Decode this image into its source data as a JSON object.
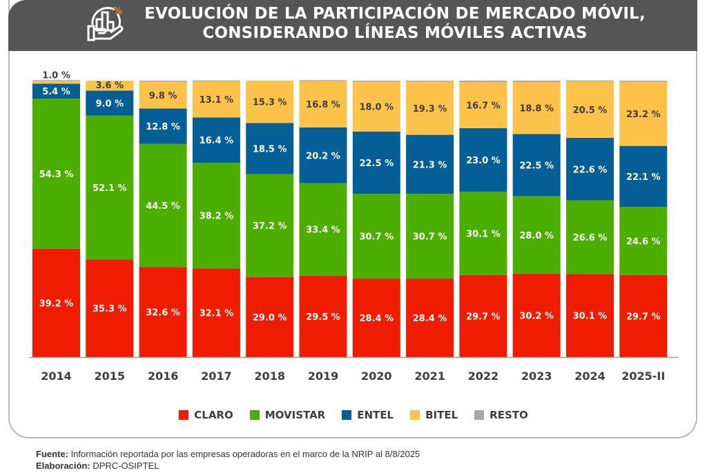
{
  "header": {
    "title_line1": "EVOLUCIÓN DE LA PARTICIPACIÓN DE MERCADO MÓVIL,",
    "title_line2": "CONSIDERANDO LÍNEAS MÓVILES ACTIVAS",
    "icon": "hand-holding-bar-chart-percent-icon"
  },
  "colors": {
    "header_bg": "#555555",
    "claro": "#f01c00",
    "movistar": "#4caf00",
    "entel": "#045f96",
    "bitel": "#fcc24a",
    "resto": "#a8a8a8",
    "icon_accent": "#f08c2c"
  },
  "chart_data": {
    "type": "bar",
    "stacked": true,
    "percent_stacked": true,
    "title": "EVOLUCIÓN DE LA PARTICIPACIÓN DE MERCADO MÓVIL, CONSIDERANDO LÍNEAS MÓVILES ACTIVAS",
    "xlabel": "",
    "ylabel": "",
    "ylim": [
      0,
      100
    ],
    "grid": false,
    "legend_position": "bottom",
    "categories": [
      "2014",
      "2015",
      "2016",
      "2017",
      "2018",
      "2019",
      "2020",
      "2021",
      "2022",
      "2023",
      "2024",
      "2025-II"
    ],
    "series": [
      {
        "name": "CLARO",
        "key": "claro",
        "values": [
          39.2,
          35.3,
          32.6,
          32.1,
          29.0,
          29.5,
          28.4,
          28.4,
          29.7,
          30.2,
          30.1,
          29.7
        ],
        "label_color": "#ffffff"
      },
      {
        "name": "MOVISTAR",
        "key": "movistar",
        "values": [
          54.3,
          52.1,
          44.5,
          38.2,
          37.2,
          33.4,
          30.7,
          30.7,
          30.1,
          28.0,
          26.6,
          24.6
        ],
        "label_color": "#ffffff"
      },
      {
        "name": "ENTEL",
        "key": "entel",
        "values": [
          5.4,
          9.0,
          12.8,
          16.4,
          18.5,
          20.2,
          22.5,
          21.3,
          23.0,
          22.5,
          22.6,
          22.1
        ],
        "label_color": "#ffffff"
      },
      {
        "name": "BITEL",
        "key": "bitel",
        "values": [
          1.0,
          3.6,
          9.8,
          13.1,
          15.3,
          16.8,
          18.0,
          19.3,
          16.7,
          18.8,
          20.5,
          23.2
        ],
        "label_color": "#3d3d3d"
      },
      {
        "name": "RESTO",
        "key": "resto",
        "values": [
          0.1,
          0.0,
          0.3,
          0.2,
          0.0,
          0.1,
          0.4,
          0.3,
          0.5,
          0.5,
          0.2,
          0.4
        ],
        "label_color": null,
        "labeled": false
      }
    ],
    "value_suffix": " %"
  },
  "legend": {
    "items": [
      {
        "label": "CLARO",
        "color": "#f01c00"
      },
      {
        "label": "MOVISTAR",
        "color": "#4caf00"
      },
      {
        "label": "ENTEL",
        "color": "#045f96"
      },
      {
        "label": "BITEL",
        "color": "#fcc24a"
      },
      {
        "label": "RESTO",
        "color": "#a8a8a8"
      }
    ]
  },
  "footer": {
    "source_label": "Fuente:",
    "source_text": " Información reportada por las empresas operadoras en el marco de la NRIP al 8/8/2025",
    "credit_label": "Elaboración:",
    "credit_text": " DPRC-OSIPTEL"
  }
}
